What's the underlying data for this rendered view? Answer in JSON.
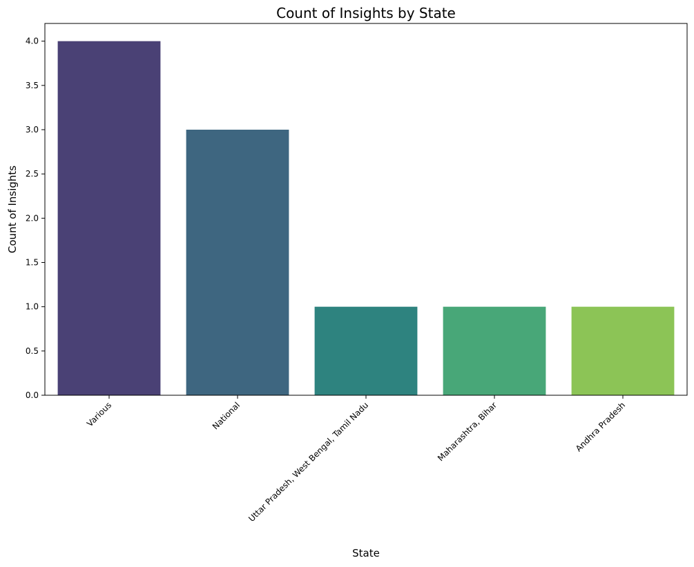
{
  "chart_data": {
    "type": "bar",
    "title": "Count of Insights by State",
    "xlabel": "State",
    "ylabel": "Count of Insights",
    "categories": [
      "Various",
      "National",
      "Uttar Pradesh, West Bengal, Tamil Nadu",
      "Maharashtra, Bihar",
      "Andhra Pradesh"
    ],
    "values": [
      4,
      3,
      1,
      1,
      1
    ],
    "colors": [
      "#4a4175",
      "#3e6680",
      "#2e837f",
      "#48a778",
      "#8cc456"
    ],
    "ylim": [
      0,
      4.2
    ],
    "yticks": [
      0.0,
      0.5,
      1.0,
      1.5,
      2.0,
      2.5,
      3.0,
      3.5,
      4.0
    ],
    "ytick_labels": [
      "0.0",
      "0.5",
      "1.0",
      "1.5",
      "2.0",
      "2.5",
      "3.0",
      "3.5",
      "4.0"
    ],
    "grid": false,
    "legend": "none"
  }
}
